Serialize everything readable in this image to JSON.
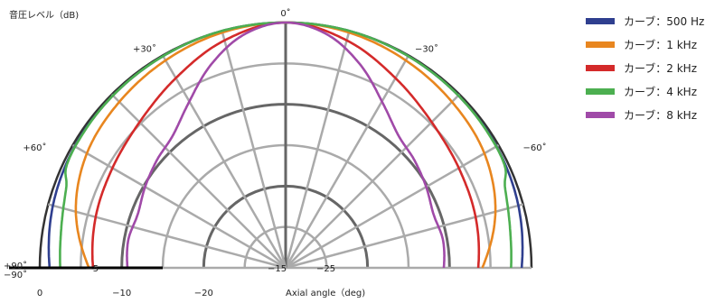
{
  "chart_data": {
    "type": "polar",
    "title": "",
    "ylabel": "音圧レベル（dB)",
    "xlabel": "Axial angle（deg)",
    "angular_ticks": [
      {
        "angle": 0,
        "label": "0˚"
      },
      {
        "angle": 30,
        "label": "+30˚"
      },
      {
        "angle": -30,
        "label": "−30˚"
      },
      {
        "angle": 60,
        "label": "+60˚"
      },
      {
        "angle": -60,
        "label": "−60˚"
      },
      {
        "angle": 90,
        "label": "+90˚"
      },
      {
        "angle": -90,
        "label": "−90˚"
      }
    ],
    "radial_range_db": [
      -30,
      0
    ],
    "radial_rings_db": [
      0,
      -5,
      -10,
      -15,
      -20,
      -25,
      -30
    ],
    "radial_ring_labels": [
      {
        "db": -5,
        "label": "−5"
      },
      {
        "db": -15,
        "label": "−15"
      },
      {
        "db": -25,
        "label": "−25"
      }
    ],
    "bottom_axis_ticks": [
      {
        "db": 0,
        "label": "0"
      },
      {
        "db": -10,
        "label": "−10"
      },
      {
        "db": -20,
        "label": "−20"
      }
    ],
    "series": [
      {
        "name": "カーブ：500 Hz",
        "color": "#2f3f8f",
        "angles": [
          -90,
          -75,
          -60,
          -45,
          -30,
          -15,
          0,
          15,
          30,
          45,
          60,
          75,
          90
        ],
        "values": [
          -1.2,
          -0.6,
          -0.3,
          -0.2,
          -0.1,
          0,
          0,
          0,
          -0.1,
          -0.2,
          -0.3,
          -0.6,
          -1.2
        ]
      },
      {
        "name": "カーブ：1 kHz",
        "color": "#e8861f",
        "angles": [
          -90,
          -75,
          -60,
          -45,
          -30,
          -15,
          0,
          15,
          30,
          45,
          60,
          75,
          90
        ],
        "values": [
          -6,
          -3.5,
          -2,
          -1.3,
          -0.7,
          -0.2,
          0,
          -0.2,
          -0.7,
          -1.3,
          -2,
          -3.5,
          -6
        ]
      },
      {
        "name": "カーブ：2 kHz",
        "color": "#d42a2a",
        "angles": [
          -90,
          -75,
          -60,
          -45,
          -30,
          -15,
          0,
          15,
          30,
          45,
          60,
          75,
          90
        ],
        "values": [
          -6.5,
          -6,
          -5.6,
          -4.8,
          -3.2,
          -1.2,
          0,
          -1.2,
          -3.2,
          -4.8,
          -5.6,
          -6,
          -6.5
        ]
      },
      {
        "name": "カーブ：4 kHz",
        "color": "#4caf50",
        "angles": [
          -90,
          -80,
          -70,
          -65,
          -55,
          -45,
          -30,
          -15,
          0,
          15,
          30,
          45,
          55,
          65,
          70,
          80,
          90
        ],
        "values": [
          -2.5,
          -2.2,
          -1.5,
          -0.5,
          -0.3,
          -0.2,
          -0.1,
          0,
          0,
          0,
          -0.1,
          -0.2,
          -0.3,
          -0.5,
          -1.5,
          -2.2,
          -2.5
        ]
      },
      {
        "name": "カーブ：8 kHz",
        "color": "#a04aa8",
        "angles": [
          -90,
          -80,
          -70,
          -60,
          -50,
          -40,
          -30,
          -20,
          -10,
          0,
          10,
          20,
          30,
          40,
          50,
          60,
          70,
          80,
          90
        ],
        "values": [
          -10.7,
          -10.5,
          -10.8,
          -10.2,
          -9.5,
          -8.7,
          -6.5,
          -3.5,
          -1,
          0,
          -1,
          -3.5,
          -6.5,
          -8.7,
          -9.5,
          -10.2,
          -10.8,
          -10.5,
          -10.7
        ]
      }
    ]
  }
}
